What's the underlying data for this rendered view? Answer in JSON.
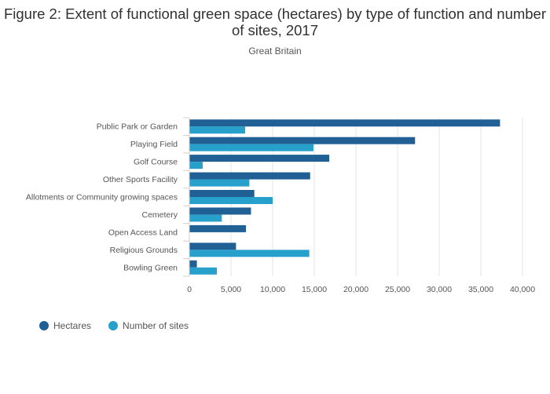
{
  "title": "Figure 2: Extent of functional green space (hectares) by type of function and number of sites, 2017",
  "subtitle": "Great Britain",
  "chart_data": {
    "type": "bar",
    "orientation": "horizontal",
    "categories": [
      "Public Park or Garden",
      "Playing Field",
      "Golf Course",
      "Other Sports Facility",
      "Allotments or Community growing spaces",
      "Cemetery",
      "Open Access Land",
      "Religious Grounds",
      "Bowling Green"
    ],
    "series": [
      {
        "name": "Hectares",
        "color": "#206095",
        "values": [
          37300,
          27100,
          16800,
          14500,
          7800,
          7400,
          6800,
          5600,
          900
        ]
      },
      {
        "name": "Number of sites",
        "color": "#27a0cc",
        "values": [
          6700,
          14900,
          1600,
          7200,
          10000,
          3900,
          0,
          14400,
          3300
        ]
      }
    ],
    "xlim": [
      0,
      40000
    ],
    "xticks": [
      0,
      5000,
      10000,
      15000,
      20000,
      25000,
      30000,
      35000,
      40000
    ],
    "xtick_labels": [
      "0",
      "5,000",
      "10,000",
      "15,000",
      "20,000",
      "25,000",
      "30,000",
      "35,000",
      "40,000"
    ],
    "grid": true,
    "legend_position": "bottom-left"
  }
}
